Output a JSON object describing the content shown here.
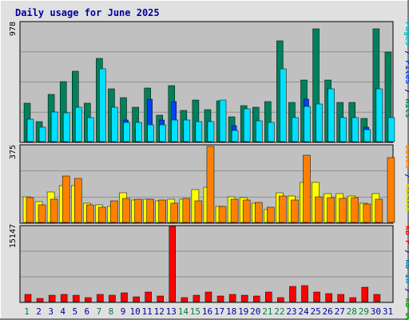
{
  "title": "Daily usage for June 2025",
  "colors": {
    "background": "#e0e0e0",
    "plot_background": "#c0c0c0",
    "grid": "#909090",
    "title": "#0000a0",
    "hits": "#00805c",
    "files": "#0040ff",
    "pages": "#00e0ff",
    "visits": "#ffff00",
    "sites": "#ff8000",
    "kb_in": "#0080c0",
    "kb_out": "#00a000",
    "kb_f": "#ff0000",
    "weekend_day": "#008040",
    "weekday_day": "#0000a0"
  },
  "y_max_labels": {
    "top": "978",
    "middle": "375",
    "bottom": "15147"
  },
  "legend": {
    "top": [
      {
        "text": "Pages",
        "color": "#00c0d0"
      },
      {
        "text": " / ",
        "color": "#0000a0"
      },
      {
        "text": "Files",
        "color": "#0040ff"
      },
      {
        "text": " / ",
        "color": "#0000a0"
      },
      {
        "text": "Hits",
        "color": "#00805c"
      }
    ],
    "middle": [
      {
        "text": "Sites",
        "color": "#ff8000"
      },
      {
        "text": " / ",
        "color": "#0000a0"
      },
      {
        "text": "Visits",
        "color": "#e0e000"
      }
    ],
    "bottom": [
      {
        "text": "kB F",
        "color": "#ff0000"
      },
      {
        "text": " / ",
        "color": "#0000a0"
      },
      {
        "text": "kB In",
        "color": "#0080c0"
      },
      {
        "text": " / ",
        "color": "#0000a0"
      },
      {
        "text": "kB Out",
        "color": "#00a000"
      }
    ]
  },
  "chart_data": {
    "type": "bar",
    "title": "Daily usage for June 2025",
    "categories": [
      "1",
      "2",
      "3",
      "4",
      "5",
      "6",
      "7",
      "8",
      "9",
      "10",
      "11",
      "12",
      "13",
      "14",
      "15",
      "16",
      "17",
      "18",
      "19",
      "20",
      "21",
      "22",
      "23",
      "24",
      "25",
      "26",
      "27",
      "28",
      "29",
      "30",
      "31"
    ],
    "weekend_days": [
      "1",
      "7",
      "8",
      "14",
      "15",
      "21",
      "22",
      "28",
      "29"
    ],
    "panels": [
      {
        "name": "top",
        "ylim": [
          0,
          978
        ],
        "series": [
          {
            "name": "Hits",
            "color": "#00805c",
            "values": [
              318,
              165,
              385,
              495,
              575,
              318,
              680,
              430,
              360,
              285,
              440,
              215,
              460,
              255,
              340,
              265,
              335,
              205,
              295,
              280,
              330,
              825,
              320,
              505,
              925,
              505,
              320,
              320,
              190,
              925,
              735
            ]
          },
          {
            "name": "Files",
            "color": "#0040ff",
            "values": [
              180,
              80,
              200,
              140,
              150,
              90,
              105,
              85,
              180,
              120,
              350,
              180,
              330,
              110,
              145,
              150,
              125,
              130,
              100,
              165,
              125,
              160,
              125,
              345,
              175,
              250,
              180,
              200,
              120,
              165,
              185
            ]
          },
          {
            "name": "Pages",
            "color": "#00e0ff",
            "values": [
              185,
              115,
              245,
              235,
              280,
              200,
              600,
              280,
              160,
              160,
              140,
              140,
              175,
              175,
              165,
              165,
              340,
              95,
              270,
              170,
              155,
              600,
              200,
              290,
              310,
              430,
              200,
              200,
              100,
              430,
              200
            ]
          }
        ]
      },
      {
        "name": "middle",
        "ylim": [
          0,
          375
        ],
        "series": [
          {
            "name": "Visits",
            "color": "#ffff00",
            "values": [
              126,
              100,
              148,
              178,
              180,
              95,
              85,
              80,
              145,
              110,
              112,
              105,
              115,
              115,
              162,
              170,
              80,
              125,
              120,
              95,
              64,
              145,
              128,
              195,
              195,
              140,
              140,
              130,
              92,
              140,
              0
            ]
          },
          {
            "name": "Sites",
            "color": "#ff8000",
            "values": [
              123,
              86,
              112,
              225,
              216,
              85,
              76,
              105,
              116,
              112,
              113,
              108,
              92,
              117,
              106,
              370,
              80,
              115,
              111,
              98,
              75,
              128,
              108,
              328,
              125,
              120,
              116,
              122,
              90,
              112,
              317
            ]
          }
        ]
      },
      {
        "name": "bottom",
        "ylim": [
          0,
          15147
        ],
        "series": [
          {
            "name": "kB F",
            "color": "#ff0000",
            "values": [
              1420,
              600,
              1260,
              1400,
              1360,
              760,
              1380,
              1300,
              1820,
              890,
              1900,
              1140,
              15147,
              740,
              1320,
              1880,
              1080,
              1420,
              1360,
              1160,
              2000,
              820,
              3020,
              3150,
              1880,
              1550,
              1460,
              730,
              2980,
              1400,
              0
            ]
          },
          {
            "name": "kB In",
            "color": "#0080c0",
            "values": []
          },
          {
            "name": "kB Out",
            "color": "#00a000",
            "values": []
          }
        ]
      }
    ]
  }
}
